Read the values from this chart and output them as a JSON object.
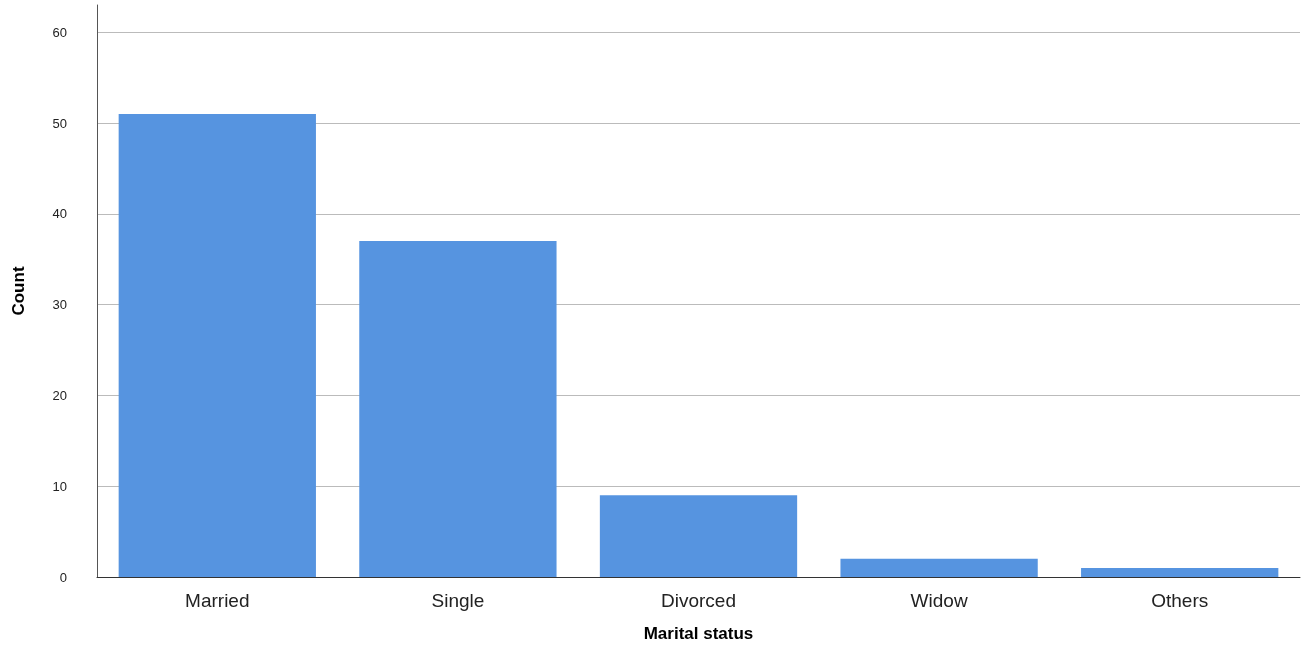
{
  "chart_data": {
    "type": "bar",
    "xlabel": "Marital status",
    "ylabel": "Count",
    "categories": [
      "Married",
      "Single",
      "Divorced",
      "Widow",
      "Others"
    ],
    "values": [
      51,
      37,
      9,
      2,
      1
    ],
    "color": "#5694e0",
    "ylim": [
      0,
      63
    ],
    "yticks": [
      0,
      10,
      20,
      30,
      40,
      50,
      60
    ],
    "grid": "y"
  }
}
